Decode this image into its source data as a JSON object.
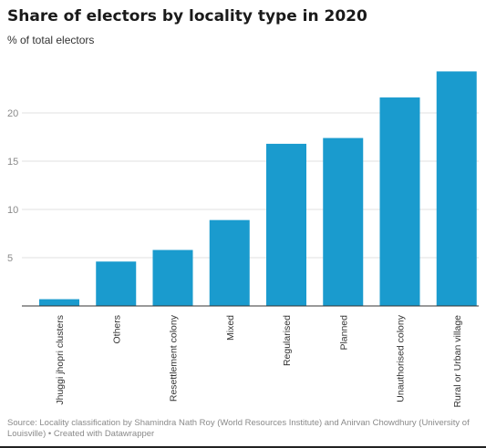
{
  "chart_data": {
    "type": "bar",
    "title": "Share of electors by locality type in 2020",
    "subtitle": "% of total electors",
    "categories": [
      "Jhuggi jhopri clusters",
      "Others",
      "Resettlement colony",
      "Mixed",
      "Regularised",
      "Planned",
      "Unauthorised colony",
      "Rural or Urban village"
    ],
    "values": [
      0.7,
      4.6,
      5.8,
      8.9,
      16.8,
      17.4,
      21.6,
      24.3
    ],
    "ylim": [
      0,
      25
    ],
    "yticks": [
      "5",
      "10",
      "15",
      "20"
    ],
    "xlabel": "",
    "ylabel": "",
    "bar_color": "#1a9bce",
    "grid": true
  },
  "footer": {
    "source": "Source: Locality classification by Shamindra Nath Roy (World Resources Institute) and Anirvan Chowdhury (University of Louisville) • Created with Datawrapper"
  }
}
